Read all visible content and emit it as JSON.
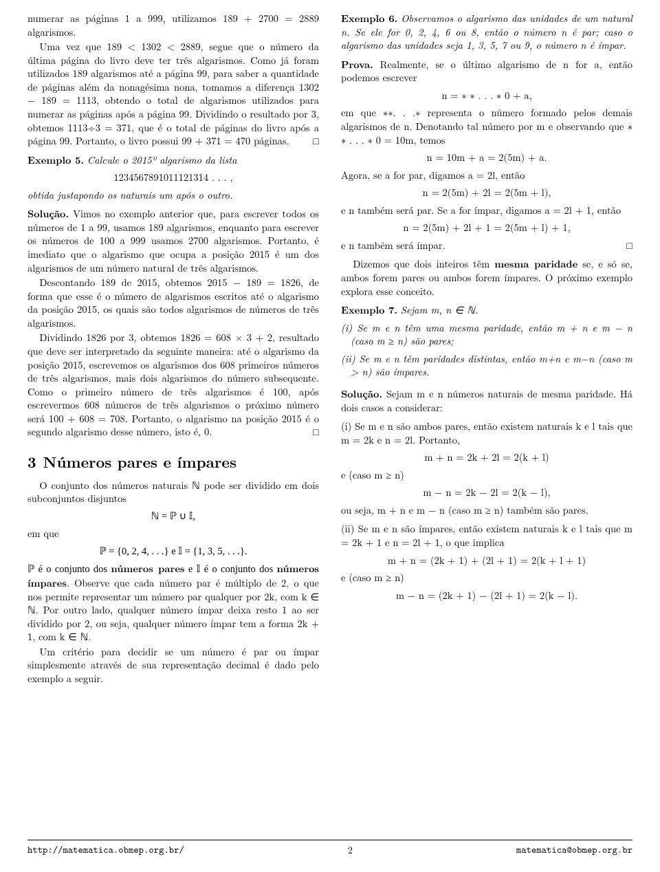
{
  "left": {
    "p1": "numerar as páginas 1 a 999, utilizamos 189 + 2700 = 2889 algarismos.",
    "p2": "Uma vez que 189 < 1302 < 2889, segue que o número da última página do livro deve ter três algarismos. Como já foram utilizados 189 algarismos até a página 99, para saber a quantidade de páginas além da nonagésima nona, tomamos a diferença 1302 − 189 = 1113, obtendo o total de algarismos utilizados para numerar as páginas após a página 99. Dividindo o resultado por 3, obtemos 1113÷3 = 371, que é o total de páginas do livro após a página 99. Portanto, o livro possui 99 + 371 = 470 páginas.",
    "qed1": "□",
    "ex5_label": "Exemplo 5.",
    "ex5_body": "Calcule o 2015º algarismo da lista",
    "ex5_seq": "1234567891011121314 . . . ,",
    "ex5_tail": "obtida justapondo os naturais um após o outro.",
    "sol5_label": "Solução.",
    "sol5_p1": "Vimos no exemplo anterior que, para escrever todos os números de 1 a 99, usamos 189 algarismos, enquanto para escrever os números de 100 a 999 usamos 2700 algarismos. Portanto, é imediato que o algarismo que ocupa a posição 2015 é um dos algarismos de um número natural de três algarismos.",
    "sol5_p2": "Descontando 189 de 2015, obtemos 2015 − 189 = 1826, de forma que esse é o número de algarismos escritos até o algarismo da posição 2015, os quais são todos algarismos de números de três algarismos.",
    "sol5_p3": "Dividindo 1826 por 3, obtemos 1826 = 608 × 3 + 2, resultado que deve ser interpretado da seguinte maneira: até o algarismo da posição 2015, escrevemos os algarismos dos 608 primeiros números de três algarismos, mais dois algarismos do número subsequente. Como o primeiro número de três algarismos é 100, após escrevermos 608 números de três algarismos o próximo número será 100 + 608 = 708. Portanto, o algarismo na posição 2015 é o segundo algarismo desse número, isto é, 0.",
    "qed2": "□",
    "sec_num": "3",
    "sec_title": "Números pares e ímpares",
    "s3_p1": "O conjunto dos números naturais ℕ pode ser dividido em dois subconjuntos disjuntos",
    "s3_eq1": "ℕ = ℙ ∪ 𝕀,",
    "s3_emque": "em que",
    "s3_eq2": "ℙ = {0, 2, 4, . . .}   e   𝕀 = {1, 3, 5, . . .}.",
    "s3_p2a": "ℙ é o conjunto dos ",
    "s3_p2b": "números pares",
    "s3_p2c": " e 𝕀 é o conjunto dos ",
    "s3_p2d": "números ímpares",
    "s3_p2e": ". Observe que cada número par é múltiplo de 2, o que nos permite representar um número par qualquer por 2k, com k ∈ ℕ. Por outro lado, qualquer número ímpar deixa resto 1 ao ser dividido por 2, ou seja, qualquer número ímpar tem a forma 2k + 1, com k ∈ ℕ.",
    "s3_p3": "Um critério para decidir se um número é par ou ímpar simplesmente através de sua representação decimal é dado pelo exemplo a seguir."
  },
  "right": {
    "ex6_label": "Exemplo 6.",
    "ex6_body": "Observamos o algarismo das unidades de um natural n. Se ele for 0, 2, 4, 6 ou 8, então o número n é par; caso o algarismo das unidades seja 1, 3, 5, 7 ou 9, o número n é ímpar.",
    "prova_label": "Prova.",
    "prova_p1": "Realmente, se o último algarismo de n for a, então podemos escrever",
    "prova_eq1": "n = ∗ ∗ . . . ∗ 0 + a,",
    "prova_p2": "em que ∗∗. . .∗ representa o número formado pelos demais algarismos de n. Denotando tal número por m e observando que ∗ ∗ . . . ∗ 0 = 10m, temos",
    "prova_eq2": "n = 10m + a = 2(5m) + a.",
    "prova_p3": "Agora, se a for par, digamos a = 2l, então",
    "prova_eq3": "n = 2(5m) + 2l = 2(5m + l),",
    "prova_p4": "e n também será par. Se a for ímpar, digamos a = 2l + 1, então",
    "prova_eq4": "n = 2(5m) + 2l + 1 = 2(5m + l) + 1,",
    "prova_p5": "e n também será ímpar.",
    "qed3": "□",
    "mesma_p": "Dizemos que dois inteiros têm ",
    "mesma_b": "mesma paridade",
    "mesma_p2": " se, e só se, ambos forem pares ou ambos forem ímpares. O próximo exemplo explora esse conceito.",
    "ex7_label": "Exemplo 7.",
    "ex7_body": "Sejam m, n ∈ ℕ.",
    "ex7_i": "(i) Se m e n têm uma mesma paridade, então m + n e m − n (caso m ≥ n) são pares;",
    "ex7_ii": "(ii) Se m e n têm paridades distintas, então m+n e m−n (caso m > n) são ímpares.",
    "sol7_label": "Solução.",
    "sol7_p1": "Sejam m e n números naturais de mesma paridade. Há dois casos a considerar:",
    "sol7_i_p": "(i) Se m e n são ambos pares, então existem naturais k e l tais que m = 2k e n = 2l. Portanto,",
    "sol7_i_eq1": "m + n = 2k + 2l = 2(k + l)",
    "sol7_i_caso": "e (caso m ≥ n)",
    "sol7_i_eq2": "m − n = 2k − 2l = 2(k − l),",
    "sol7_i_tail": "ou seja, m + n e m − n (caso m ≥ n) também são pares.",
    "sol7_ii_p": "(ii) Se m e n são ímpares, então existem naturais k e l tais que m = 2k + 1 e n = 2l + 1, o que implica",
    "sol7_ii_eq1": "m + n = (2k + 1) + (2l + 1) = 2(k + l + 1)",
    "sol7_ii_caso": "e (caso m ≥ n)",
    "sol7_ii_eq2": "m − n = (2k + 1) − (2l + 1) = 2(k − l)."
  },
  "footer": {
    "left": "http://matematica.obmep.org.br/",
    "page": "2",
    "right": "matematica@obmep.org.br"
  }
}
